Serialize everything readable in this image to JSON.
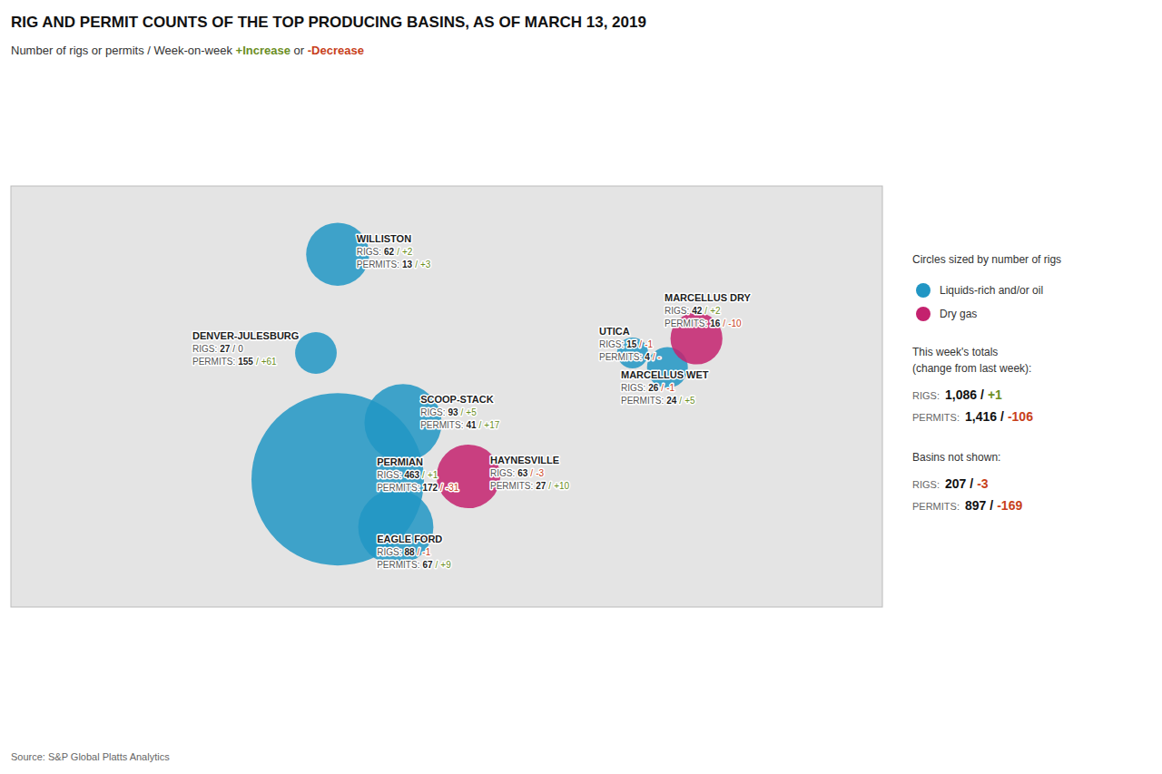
{
  "chart_data": {
    "type": "bubble",
    "title": "RIG AND PERMIT COUNTS OF THE TOP PRODUCING BASINS, AS OF MARCH 13, 2019",
    "subtitle": [
      {
        "text": "Number of rigs or permits / Week-on-week "
      },
      {
        "text": "+Increase",
        "color": "#6b8e23"
      },
      {
        "text": " or "
      },
      {
        "text": "-Decrease",
        "color": "#c8401a"
      }
    ],
    "source": "Source: S&P Global Platts Analytics",
    "xlim": [
      -125,
      -65
    ],
    "ylim": [
      23,
      52
    ],
    "tick_labels": false,
    "grid": false,
    "legend": "right",
    "size_legend": "Circles sized by number of rigs",
    "rigs_label": "RIGS:",
    "permits_label": "PERMITS:",
    "separator": "/",
    "series": [
      {
        "name": "Liquids-rich and/or oil",
        "color": "#2196c4"
      },
      {
        "name": "Dry gas",
        "color": "#c4226e"
      }
    ],
    "points": [
      {
        "label": "WILLISTON",
        "x": -102.5,
        "y": 47.3,
        "size": 62,
        "size_change": {
          "text": "+2",
          "color": "#6b8e23"
        },
        "permits": 13,
        "permits_change": {
          "text": "+3",
          "color": "#6b8e23"
        },
        "series": 0
      },
      {
        "label": "DENVER-JULESBURG",
        "x": -104.0,
        "y": 40.5,
        "size": 27,
        "size_change": {
          "text": "0",
          "color": "#444444"
        },
        "permits": 155,
        "permits_change": {
          "text": "+61",
          "color": "#6b8e23"
        },
        "series": 0
      },
      {
        "label": "SCOOP-STACK",
        "x": -98.0,
        "y": 35.7,
        "size": 93,
        "size_change": {
          "text": "+5",
          "color": "#6b8e23"
        },
        "permits": 41,
        "permits_change": {
          "text": "+17",
          "color": "#6b8e23"
        },
        "series": 0
      },
      {
        "label": "PERMIAN",
        "x": -102.5,
        "y": 31.8,
        "size": 463,
        "size_change": {
          "text": "+1",
          "color": "#6b8e23"
        },
        "permits": 172,
        "permits_change": {
          "text": "-31",
          "color": "#c8401a"
        },
        "series": 0
      },
      {
        "label": "EAGLE FORD",
        "x": -98.5,
        "y": 28.5,
        "size": 88,
        "size_change": {
          "text": "-1",
          "color": "#c8401a"
        },
        "permits": 67,
        "permits_change": {
          "text": "+9",
          "color": "#6b8e23"
        },
        "series": 0
      },
      {
        "label": "HAYNESVILLE",
        "x": -93.5,
        "y": 32.0,
        "size": 63,
        "size_change": {
          "text": "-3",
          "color": "#c8401a"
        },
        "permits": 27,
        "permits_change": {
          "text": "+10",
          "color": "#6b8e23"
        },
        "series": 1
      },
      {
        "label": "UTICA",
        "x": -82.2,
        "y": 40.5,
        "size": 15,
        "size_change": {
          "text": "-1",
          "color": "#c8401a"
        },
        "permits": 4,
        "permits_change": {
          "text": "-",
          "color": "#c8401a"
        },
        "series": 0
      },
      {
        "label": "MARCELLUS WET",
        "x": -79.8,
        "y": 39.5,
        "size": 26,
        "size_change": {
          "text": "-1",
          "color": "#c8401a"
        },
        "permits": 24,
        "permits_change": {
          "text": "+5",
          "color": "#6b8e23"
        },
        "series": 0
      },
      {
        "label": "MARCELLUS DRY",
        "x": -77.8,
        "y": 41.5,
        "size": 42,
        "size_change": {
          "text": "+2",
          "color": "#6b8e23"
        },
        "permits": 16,
        "permits_change": {
          "text": "-10",
          "color": "#c8401a"
        },
        "series": 1
      }
    ],
    "totals": {
      "title": "This week's totals",
      "note": "(change from last week):",
      "rigs": {
        "value": 1086,
        "label": "1,086"
      },
      "rigs_change": {
        "text": "+1",
        "color": "#6b8e23"
      },
      "permits": {
        "value": 1416,
        "label": "1,416"
      },
      "permits_change": {
        "text": "-106",
        "color": "#c8401a"
      }
    },
    "not_shown": {
      "title": "Basins not shown:",
      "rigs": 207,
      "rigs_change": {
        "text": "-3",
        "color": "#c8401a"
      },
      "permits": 897,
      "permits_change": {
        "text": "-169",
        "color": "#c8401a"
      }
    }
  }
}
